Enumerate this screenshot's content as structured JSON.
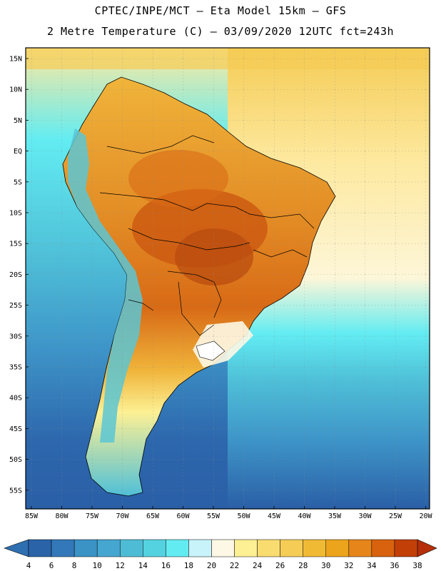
{
  "title": {
    "line1": "CPTEC/INPE/MCT —  Eta Model 15km — GFS",
    "line2": "2 Metre Temperature (C) — 03/09/2020 12UTC fct=243h"
  },
  "lat_labels": [
    "15N",
    "10N",
    "5N",
    "EQ",
    "5S",
    "10S",
    "15S",
    "20S",
    "25S",
    "30S",
    "35S",
    "40S",
    "45S",
    "50S",
    "55S"
  ],
  "lon_labels": [
    "85W",
    "80W",
    "75W",
    "70W",
    "65W",
    "60W",
    "55W",
    "50W",
    "45W",
    "40W",
    "35W",
    "30W",
    "25W",
    "20W"
  ],
  "legend": {
    "labels": [
      "4",
      "6",
      "8",
      "10",
      "12",
      "14",
      "16",
      "18",
      "20",
      "22",
      "24",
      "26",
      "28",
      "30",
      "32",
      "34",
      "36",
      "38"
    ],
    "colors": [
      "#2a63a8",
      "#3378b9",
      "#3a92c5",
      "#45a7d0",
      "#4fbcd6",
      "#55d2e0",
      "#62ecf2",
      "#c9f3fb",
      "#fdf8e6",
      "#fdf094",
      "#f9dc70",
      "#f5cc55",
      "#f0ba35",
      "#eca41c",
      "#e6851a",
      "#d9620e",
      "#c23f08"
    ],
    "low_color": "#2e6fb0",
    "high_color": "#b5300a"
  },
  "palette": {
    "ocean_cold": "#2d67ad",
    "ocean_cool": "#3e95c8",
    "ocean_mid": "#4fc0d8",
    "ocean_warm": "#62ecf2",
    "ocean_atl_n": "#fde9a0",
    "ocean_atl_pale": "#fdf6d8",
    "land_hot": "#e28a24",
    "land_very_hot": "#cc5a12",
    "land_warm": "#f0b43a",
    "andes": "#5cc6d4"
  }
}
